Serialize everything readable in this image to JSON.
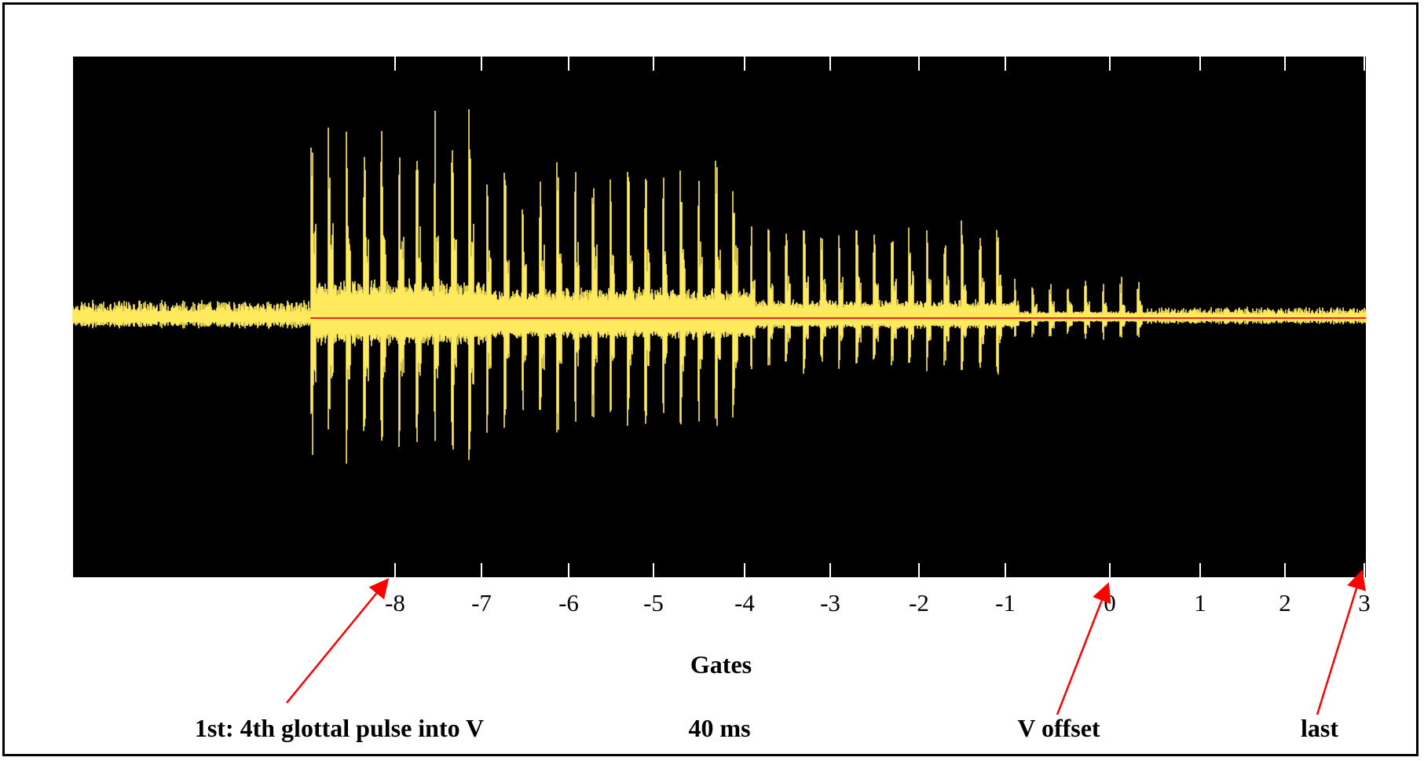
{
  "chart_data": {
    "type": "line",
    "title": "",
    "xlabel": "Gates",
    "ylabel": "",
    "xlim": [
      -11.7,
      3.0
    ],
    "ylim": [
      -1.0,
      1.0
    ],
    "x_ticks": [
      -8,
      -7,
      -6,
      -5,
      -4,
      -3,
      -2,
      -1,
      0,
      1,
      2,
      3
    ],
    "grid": false,
    "legend": "none",
    "colors": {
      "background": "#000000",
      "waveform": "#ffea5e",
      "baseline": "#ff2020",
      "annotation": "#ff0000"
    },
    "waveform": {
      "description_free_segments": [
        {
          "x_start": -11.7,
          "x_end": -9.0,
          "peak_amplitude": 0.08
        },
        {
          "x_start": -9.0,
          "x_end": -7.0,
          "peak_amplitude": 0.95
        },
        {
          "x_start": -7.0,
          "x_end": -4.0,
          "peak_amplitude": 0.75
        },
        {
          "x_start": -4.0,
          "x_end": -1.0,
          "peak_amplitude": 0.45
        },
        {
          "x_start": -1.0,
          "x_end": 0.5,
          "peak_amplitude": 0.18
        },
        {
          "x_start": 0.5,
          "x_end": 3.0,
          "peak_amplitude": 0.05
        }
      ]
    },
    "annotations": [
      {
        "text": "1st: 4th glottal pulse into V",
        "x": -8
      },
      {
        "text": "40 ms",
        "x": null
      },
      {
        "text": "V offset",
        "x": 0
      },
      {
        "text": "last",
        "x": 3
      }
    ]
  }
}
